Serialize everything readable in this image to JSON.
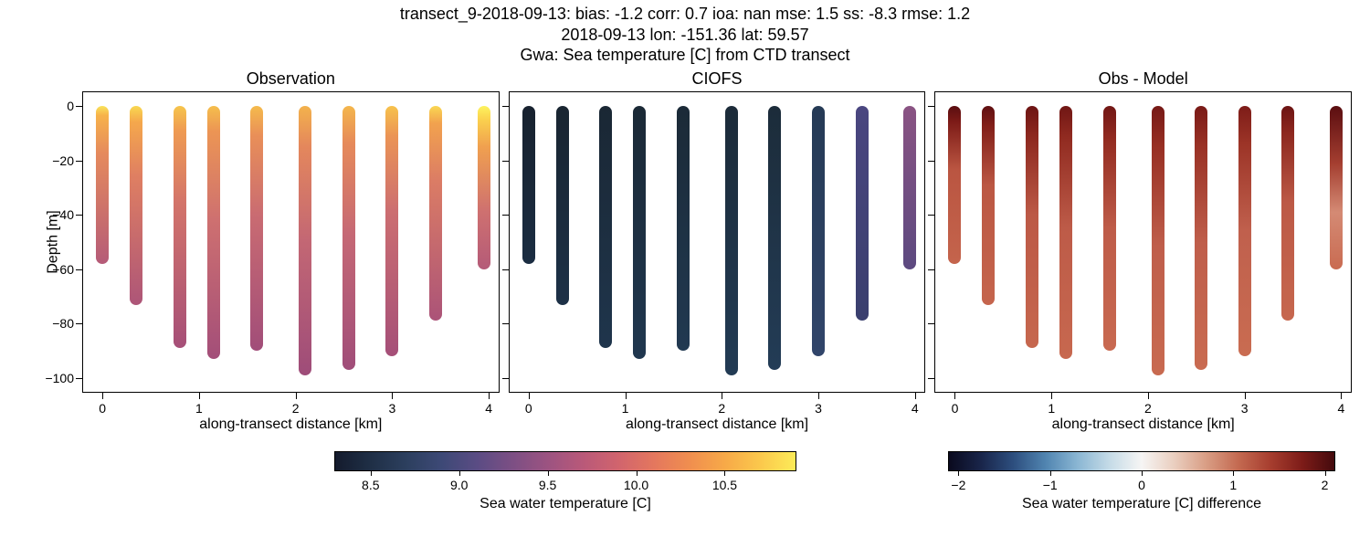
{
  "title_lines": [
    "transect_9-2018-09-13:  bias: -1.2   corr: 0.7   ioa: nan   mse: 1.5   ss: -8.3   rmse: 1.2",
    "2018-09-13 lon: -151.36 lat: 59.57",
    "Gwa: Sea temperature [C] from CTD transect"
  ],
  "ylabel": "Depth [m]",
  "xlabel": "along-transect distance [km]",
  "ylim": [
    -105,
    5
  ],
  "xlim": [
    -0.2,
    4.1
  ],
  "yticks": [
    0,
    -20,
    -40,
    -60,
    -80,
    -100
  ],
  "xticks": [
    0,
    1,
    2,
    3,
    4
  ],
  "ytick_labels": [
    "0",
    "−20",
    "−40",
    "−60",
    "−80",
    "−100"
  ],
  "xtick_labels": [
    "0",
    "1",
    "2",
    "3",
    "4"
  ],
  "profiles_x": [
    0.0,
    0.35,
    0.8,
    1.15,
    1.6,
    2.1,
    2.55,
    3.0,
    3.45,
    3.95
  ],
  "profiles_depth": [
    -58,
    -73,
    -89,
    -93,
    -90,
    -99,
    -97,
    -92,
    -79,
    -60
  ],
  "panels": [
    {
      "title": "Observation",
      "show_ylabel": true,
      "show_yticklabels": true,
      "profile_gradients": [
        "linear-gradient(to bottom, #f9e35a 0%, #f7b24a 6%, #e58a5d 30%, #b55b78 100%)",
        "linear-gradient(to bottom, #f9d850 0%, #f5a84c 8%, #df7f62 35%, #ad5578 100%)",
        "linear-gradient(to bottom, #f6c54c 0%, #ef9b52 10%, #d3746a 40%, #a64f78 100%)",
        "linear-gradient(to bottom, #f5be4c 0%, #ec9554 10%, #ce7070 45%, #a34e79 100%)",
        "linear-gradient(to bottom, #f5bb4c 0%, #e98f58 12%, #c96b72 45%, #a14d79 100%)",
        "linear-gradient(to bottom, #f3b24c 0%, #e4875c 15%, #c36774 50%, #9e4c79 100%)",
        "linear-gradient(to bottom, #f4b64c 0%, #e68a5a 14%, #c66975 48%, #a04d79 100%)",
        "linear-gradient(to bottom, #f7c24c 0%, #eb9455 12%, #cc6e71 42%, #a54f78 100%)",
        "linear-gradient(to bottom, #fad752 0%, #f2a24e 8%, #db7c65 35%, #ab5378 100%)",
        "linear-gradient(to bottom, #fcf35e 0%, #fbd24e 8%, #f0a04f 25%, #ce7070 65%, #b45a78 100%)"
      ]
    },
    {
      "title": "CIOFS",
      "show_ylabel": false,
      "show_yticklabels": false,
      "profile_gradients": [
        "linear-gradient(to bottom, #18222f 0%, #1b2d42 100%)",
        "linear-gradient(to bottom, #192531 0%, #1d3147 100%)",
        "linear-gradient(to bottom, #1a2734 0%, #1f354c 100%)",
        "linear-gradient(to bottom, #1b2936 0%, #20374f 100%)",
        "linear-gradient(to bottom, #1b2a37 0%, #213951 100%)",
        "linear-gradient(to bottom, #1c2b39 0%, #223b54 100%)",
        "linear-gradient(to bottom, #1c2c3a 0%, #233c56 100%)",
        "linear-gradient(to bottom, #253a55 0%, #31456a 100%)",
        "linear-gradient(to bottom, #4a4680 0%, #3a3f6e 100%)",
        "linear-gradient(to bottom, #8a5383 0%, #5c4980 100%)"
      ]
    },
    {
      "title": "Obs - Model",
      "show_ylabel": false,
      "show_yticklabels": false,
      "profile_gradients": [
        "linear-gradient(to bottom, #5a0d10 0%, #7d1b17 10%, #ba5541 40%, #c4644c 100%)",
        "linear-gradient(to bottom, #5f0f11 0%, #821f19 10%, #bb5743 40%, #c5654d 100%)",
        "linear-gradient(to bottom, #6c1413 0%, #8c271e 12%, #bc5946 45%, #c6674e 100%)",
        "linear-gradient(to bottom, #701614 0%, #902a20 12%, #bd5b48 48%, #c7684f 100%)",
        "linear-gradient(to bottom, #721715 0%, #932c21 14%, #be5c49 50%, #c86950 100%)",
        "linear-gradient(to bottom, #761916 0%, #972f23 15%, #bf5e4b 52%, #c86a50 100%)",
        "linear-gradient(to bottom, #791a17 0%, #993125 15%, #bf5e4b 52%, #c96b51 100%)",
        "linear-gradient(to bottom, #7d1c18 0%, #9c3427 15%, #c0604d 50%, #c96c51 100%)",
        "linear-gradient(to bottom, #6c1413 0%, #8c271e 12%, #bc5946 45%, #c6674e 100%)",
        "linear-gradient(to bottom, #5a0d10 0%, #a43e30 35%, #d48a74 65%, #c96b51 100%)"
      ]
    }
  ],
  "colorbar1": {
    "gradient": "linear-gradient(to right, #141b2d, #1f2f46, #2c3f5e, #3d4976, #5a4c84, #7c4f84, #9c5381, #b95979, #d1646d, #e4775e, #f08e4f, #f7a948, #fbc84c, #fceb58)",
    "ticks": [
      8.5,
      9.0,
      9.5,
      10.0,
      10.5
    ],
    "tick_labels": [
      "8.5",
      "9.0",
      "9.5",
      "10.0",
      "10.5"
    ],
    "min": 8.3,
    "max": 10.9,
    "label": "Sea water temperature [C]",
    "left_pct": 30,
    "width_pct": 55
  },
  "colorbar2": {
    "gradient": "linear-gradient(to right, #0a0a1e, #19254a, #2d4e7e, #5084b0, #8ab6d3, #c5dbe7, #f6f5f4, #eacfc0, #d99e85, #c46a51, #a73e2f, #7d1c18, #440a0d)",
    "ticks": [
      -2,
      -1,
      0,
      1,
      2
    ],
    "tick_labels": [
      "−2",
      "−1",
      "0",
      "1",
      "2"
    ],
    "min": -2.1,
    "max": 2.1,
    "label": "Sea water temperature [C] difference",
    "left_pct": 4,
    "width_pct": 92
  }
}
